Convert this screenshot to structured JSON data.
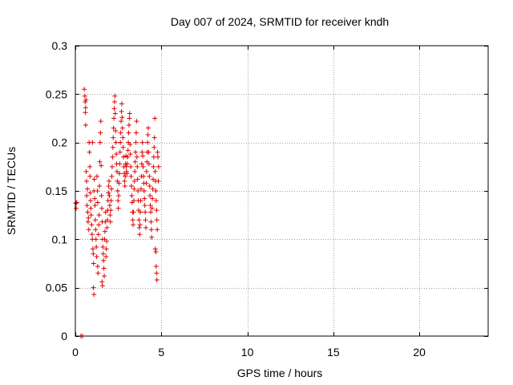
{
  "chart_data": {
    "type": "scatter",
    "title": "Day 007 of 2024, SRMTID for receiver kndh",
    "xlabel": "GPS time / hours",
    "ylabel": "SRMTID / TECUs",
    "xlim": [
      0,
      24
    ],
    "ylim": [
      0,
      0.3
    ],
    "xticks": [
      0,
      5,
      10,
      15,
      20
    ],
    "xtick_labels": [
      "0",
      "5",
      "10",
      "15",
      "20"
    ],
    "yticks": [
      0,
      0.05,
      0.1,
      0.15,
      0.2,
      0.25,
      0.3
    ],
    "ytick_labels": [
      "0",
      "0.05",
      "0.1",
      "0.15",
      "0.2",
      "0.25",
      "0.3"
    ],
    "grid": true,
    "marker": "plus",
    "series": [
      {
        "name": "SRMTID",
        "color": "#e00000",
        "points": [
          [
            0.03,
            0.137
          ],
          [
            0.05,
            0.132
          ],
          [
            0.08,
            0.138
          ],
          [
            0.32,
            0
          ],
          [
            0.42,
            0
          ],
          [
            0.52,
            0.255
          ],
          [
            0.55,
            0.248
          ],
          [
            0.57,
            0.242
          ],
          [
            0.6,
            0.236
          ],
          [
            0.62,
            0.244
          ],
          [
            0.58,
            0.231
          ],
          [
            0.6,
            0.218
          ],
          [
            0.63,
            0.17
          ],
          [
            0.65,
            0.16
          ],
          [
            0.66,
            0.145
          ],
          [
            0.68,
            0.135
          ],
          [
            0.7,
            0.152
          ],
          [
            0.72,
            0.128
          ],
          [
            0.74,
            0.118
          ],
          [
            0.76,
            0.122
          ],
          [
            0.78,
            0.11
          ],
          [
            0.8,
            0.2
          ],
          [
            0.82,
            0.19
          ],
          [
            0.84,
            0.175
          ],
          [
            0.85,
            0.165
          ],
          [
            0.86,
            0.148
          ],
          [
            0.88,
            0.14
          ],
          [
            0.9,
            0.132
          ],
          [
            0.92,
            0.125
          ],
          [
            0.95,
            0.115
          ],
          [
            0.97,
            0.105
          ],
          [
            0.99,
            0.1
          ],
          [
            1.0,
            0.2
          ],
          [
            1.02,
            0.09
          ],
          [
            1.04,
            0.085
          ],
          [
            1.06,
            0.075
          ],
          [
            1.08,
            0.15
          ],
          [
            1.1,
            0.162
          ],
          [
            1.12,
            0.142
          ],
          [
            1.14,
            0.135
          ],
          [
            1.16,
            0.12
          ],
          [
            1.18,
            0.11
          ],
          [
            1.2,
            0.1
          ],
          [
            1.22,
            0.092
          ],
          [
            1.24,
            0.082
          ],
          [
            1.26,
            0.165
          ],
          [
            1.28,
            0.15
          ],
          [
            1.3,
            0.138
          ],
          [
            1.05,
            0.05
          ],
          [
            1.08,
            0.043
          ],
          [
            1.3,
            0.072
          ],
          [
            1.32,
            0.065
          ],
          [
            1.34,
            0.105
          ],
          [
            1.36,
            0.115
          ],
          [
            1.38,
            0.125
          ],
          [
            1.4,
            0.155
          ],
          [
            1.42,
            0.18
          ],
          [
            1.44,
            0.2
          ],
          [
            1.46,
            0.21
          ],
          [
            1.48,
            0.222
          ],
          [
            1.5,
            0.176
          ],
          [
            1.52,
            0.145
          ],
          [
            1.54,
            0.132
          ],
          [
            1.56,
            0.118
          ],
          [
            1.58,
            0.1
          ],
          [
            1.6,
            0.092
          ],
          [
            1.62,
            0.085
          ],
          [
            1.64,
            0.078
          ],
          [
            1.66,
            0.07
          ],
          [
            1.68,
            0.062
          ],
          [
            1.55,
            0.056
          ],
          [
            1.58,
            0.052
          ],
          [
            1.7,
            0.1
          ],
          [
            1.72,
            0.108
          ],
          [
            1.74,
            0.118
          ],
          [
            1.76,
            0.128
          ],
          [
            1.78,
            0.082
          ],
          [
            1.8,
            0.09
          ],
          [
            1.82,
            0.098
          ],
          [
            1.84,
            0.112
          ],
          [
            1.86,
            0.12
          ],
          [
            1.88,
            0.13
          ],
          [
            1.9,
            0.14
          ],
          [
            1.92,
            0.148
          ],
          [
            1.94,
            0.155
          ],
          [
            1.96,
            0.16
          ],
          [
            1.98,
            0.145
          ],
          [
            2.0,
            0.135
          ],
          [
            2.02,
            0.125
          ],
          [
            2.04,
            0.118
          ],
          [
            2.06,
            0.13
          ],
          [
            2.08,
            0.14
          ],
          [
            2.1,
            0.152
          ],
          [
            2.12,
            0.165
          ],
          [
            2.14,
            0.175
          ],
          [
            2.16,
            0.185
          ],
          [
            2.18,
            0.195
          ],
          [
            2.2,
            0.205
          ],
          [
            2.22,
            0.215
          ],
          [
            2.24,
            0.225
          ],
          [
            2.26,
            0.235
          ],
          [
            2.28,
            0.242
          ],
          [
            2.3,
            0.248
          ],
          [
            2.32,
            0.23
          ],
          [
            2.34,
            0.212
          ],
          [
            2.36,
            0.2
          ],
          [
            2.38,
            0.188
          ],
          [
            2.4,
            0.178
          ],
          [
            2.42,
            0.17
          ],
          [
            2.44,
            0.16
          ],
          [
            2.46,
            0.15
          ],
          [
            2.48,
            0.14
          ],
          [
            2.5,
            0.132
          ],
          [
            2.52,
            0.145
          ],
          [
            2.54,
            0.158
          ],
          [
            2.56,
            0.168
          ],
          [
            2.58,
            0.178
          ],
          [
            2.6,
            0.19
          ],
          [
            2.62,
            0.2
          ],
          [
            2.64,
            0.21
          ],
          [
            2.66,
            0.222
          ],
          [
            2.68,
            0.232
          ],
          [
            2.7,
            0.24
          ],
          [
            2.72,
            0.226
          ],
          [
            2.74,
            0.215
          ],
          [
            2.76,
            0.205
          ],
          [
            2.78,
            0.195
          ],
          [
            2.8,
            0.185
          ],
          [
            2.82,
            0.175
          ],
          [
            2.84,
            0.168
          ],
          [
            2.86,
            0.16
          ],
          [
            2.88,
            0.155
          ],
          [
            2.9,
            0.165
          ],
          [
            2.92,
            0.178
          ],
          [
            2.94,
            0.186
          ],
          [
            2.96,
            0.175
          ],
          [
            2.98,
            0.17
          ],
          [
            3.0,
            0.168
          ],
          [
            3.02,
            0.178
          ],
          [
            3.04,
            0.185
          ],
          [
            3.06,
            0.192
          ],
          [
            3.08,
            0.2
          ],
          [
            3.1,
            0.21
          ],
          [
            3.12,
            0.218
          ],
          [
            3.14,
            0.225
          ],
          [
            3.16,
            0.23
          ],
          [
            3.18,
            0.198
          ],
          [
            3.2,
            0.188
          ],
          [
            3.22,
            0.175
          ],
          [
            3.24,
            0.165
          ],
          [
            3.26,
            0.155
          ],
          [
            3.28,
            0.145
          ],
          [
            3.3,
            0.138
          ],
          [
            3.32,
            0.128
          ],
          [
            3.34,
            0.12
          ],
          [
            3.36,
            0.115
          ],
          [
            3.38,
            0.128
          ],
          [
            3.4,
            0.14
          ],
          [
            3.42,
            0.152
          ],
          [
            3.44,
            0.16
          ],
          [
            3.46,
            0.17
          ],
          [
            3.48,
            0.18
          ],
          [
            3.5,
            0.19
          ],
          [
            3.52,
            0.2
          ],
          [
            3.54,
            0.21
          ],
          [
            3.56,
            0.222
          ],
          [
            3.58,
            0.185
          ],
          [
            3.6,
            0.175
          ],
          [
            3.62,
            0.162
          ],
          [
            3.64,
            0.15
          ],
          [
            3.66,
            0.14
          ],
          [
            3.68,
            0.13
          ],
          [
            3.7,
            0.12
          ],
          [
            3.72,
            0.112
          ],
          [
            3.74,
            0.105
          ],
          [
            3.76,
            0.115
          ],
          [
            3.78,
            0.128
          ],
          [
            3.8,
            0.14
          ],
          [
            3.82,
            0.152
          ],
          [
            3.84,
            0.165
          ],
          [
            3.86,
            0.178
          ],
          [
            3.88,
            0.19
          ],
          [
            3.9,
            0.2
          ],
          [
            3.92,
            0.186
          ],
          [
            3.94,
            0.175
          ],
          [
            3.96,
            0.165
          ],
          [
            3.98,
            0.158
          ],
          [
            4.0,
            0.15
          ],
          [
            4.02,
            0.142
          ],
          [
            4.04,
            0.135
          ],
          [
            4.06,
            0.128
          ],
          [
            4.08,
            0.12
          ],
          [
            4.1,
            0.112
          ],
          [
            4.12,
            0.158
          ],
          [
            4.14,
            0.17
          ],
          [
            4.16,
            0.18
          ],
          [
            4.18,
            0.19
          ],
          [
            4.2,
            0.2
          ],
          [
            4.22,
            0.208
          ],
          [
            4.24,
            0.215
          ],
          [
            4.26,
            0.19
          ],
          [
            4.28,
            0.178
          ],
          [
            4.3,
            0.165
          ],
          [
            4.32,
            0.155
          ],
          [
            4.34,
            0.145
          ],
          [
            4.36,
            0.135
          ],
          [
            4.38,
            0.128
          ],
          [
            4.4,
            0.118
          ],
          [
            4.42,
            0.11
          ],
          [
            4.44,
            0.102
          ],
          [
            4.46,
            0.132
          ],
          [
            4.48,
            0.142
          ],
          [
            4.5,
            0.152
          ],
          [
            4.52,
            0.162
          ],
          [
            4.54,
            0.175
          ],
          [
            4.56,
            0.185
          ],
          [
            4.58,
            0.195
          ],
          [
            4.6,
            0.205
          ],
          [
            4.62,
            0.225
          ],
          [
            4.64,
            0.17
          ],
          [
            4.66,
            0.16
          ],
          [
            4.68,
            0.15
          ],
          [
            4.7,
            0.14
          ],
          [
            4.72,
            0.13
          ],
          [
            4.74,
            0.12
          ],
          [
            4.76,
            0.11
          ],
          [
            4.78,
            0.19
          ],
          [
            4.8,
            0.185
          ],
          [
            4.82,
            0.16
          ],
          [
            4.65,
            0.09
          ],
          [
            4.68,
            0.087
          ],
          [
            4.7,
            0.072
          ],
          [
            4.72,
            0.065
          ],
          [
            4.74,
            0.058
          ],
          [
            4.84,
            0.175
          ]
        ]
      }
    ]
  }
}
